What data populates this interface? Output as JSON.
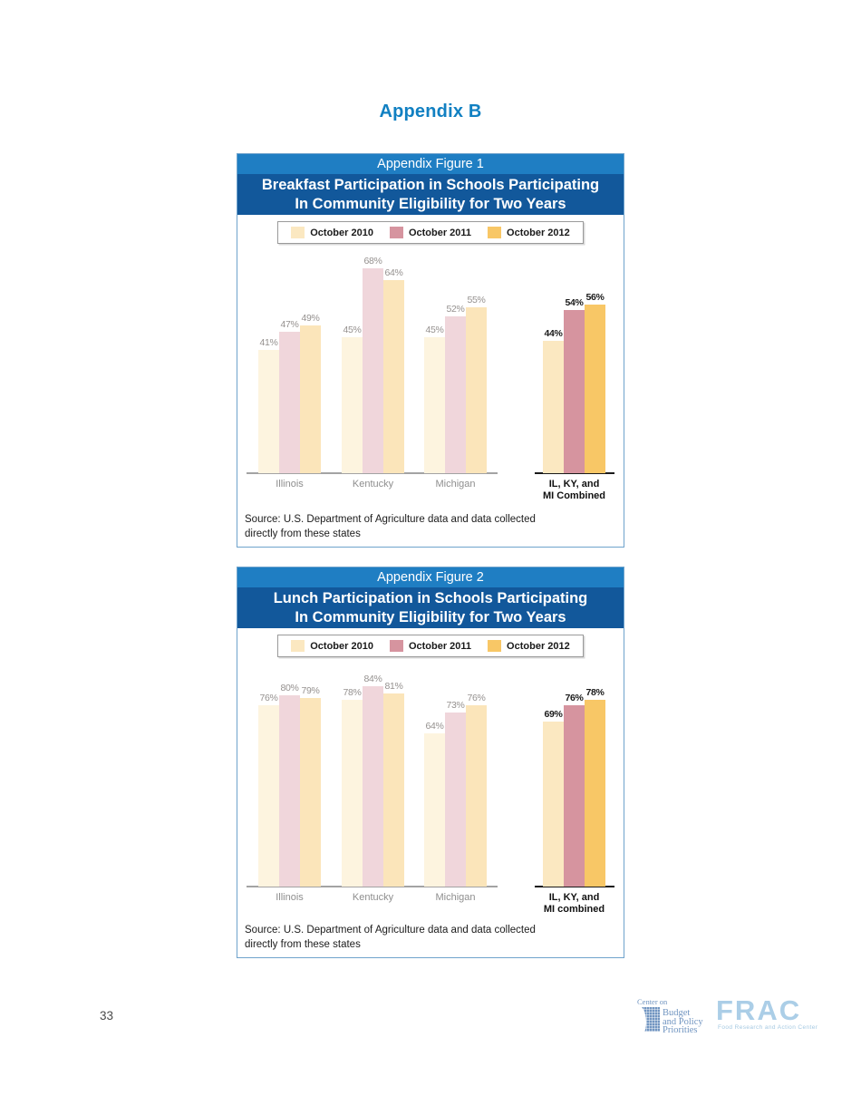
{
  "page": {
    "title": "Appendix B",
    "page_number": "33"
  },
  "colors": {
    "accent_blue": "#1180C2",
    "band_light_blue": "#1F7EC3",
    "band_dark_blue": "#12589B",
    "box_border": "#6FA3CC",
    "series_full": [
      "#FBE8C1",
      "#D6949F",
      "#F8C766"
    ],
    "series_muted": [
      "#FDF4DF",
      "#F0D6DB",
      "#FBE5BA"
    ],
    "value_label_gray": "#95918F",
    "value_label_black": "#1A1A1A",
    "axis_gray": "#A3A3A3",
    "axis_black": "#1A1A1A"
  },
  "legend": {
    "items": [
      "October 2010",
      "October 2011",
      "October 2012"
    ]
  },
  "figures": [
    {
      "figure_label": "Appendix Figure 1",
      "title_line1": "Breakfast Participation in Schools Participating",
      "title_line2": "In Community Eligibility for Two Years",
      "source_line1": "Source: U.S. Department of Agriculture data and data collected",
      "source_line2": "directly from these states",
      "chart_data": {
        "type": "bar",
        "categories": [
          "Illinois",
          "Kentucky",
          "Michigan",
          "IL, KY, and|MI Combined"
        ],
        "series": [
          {
            "name": "October 2010",
            "values": [
              41,
              45,
              45,
              44
            ]
          },
          {
            "name": "October 2011",
            "values": [
              47,
              68,
              52,
              54
            ]
          },
          {
            "name": "October 2012",
            "values": [
              49,
              64,
              55,
              56
            ]
          }
        ],
        "unit": "%",
        "ylim": [
          0,
          76
        ],
        "grid": false,
        "legend_position": "top",
        "highlight_category": "IL, KY, and MI Combined",
        "title": "Breakfast Participation in Schools Participating In Community Eligibility for Two Years"
      }
    },
    {
      "figure_label": "Appendix Figure 2",
      "title_line1": "Lunch Participation in Schools Participating",
      "title_line2": "In Community Eligibility for Two Years",
      "source_line1": "Source: U.S. Department of Agriculture data and data collected",
      "source_line2": "directly from these states",
      "chart_data": {
        "type": "bar",
        "categories": [
          "Illinois",
          "Kentucky",
          "Michigan",
          "IL, KY, and|MI combined"
        ],
        "series": [
          {
            "name": "October 2010",
            "values": [
              76,
              78,
              64,
              69
            ]
          },
          {
            "name": "October 2011",
            "values": [
              80,
              84,
              73,
              76
            ]
          },
          {
            "name": "October 2012",
            "values": [
              79,
              81,
              76,
              78
            ]
          }
        ],
        "unit": "%",
        "ylim": [
          0,
          96
        ],
        "grid": false,
        "legend_position": "top",
        "highlight_category": "IL, KY, and MI combined",
        "title": "Lunch Participation in Schools Participating In Community Eligibility for Two Years"
      }
    }
  ],
  "footer": {
    "cbpp_logo": {
      "line_top": "Center on",
      "line1": "Budget",
      "line2": "and Policy",
      "line3": "Priorities"
    },
    "frac_logo": {
      "acronym": "FRAC",
      "tagline": "Food Research and Action Center"
    }
  }
}
